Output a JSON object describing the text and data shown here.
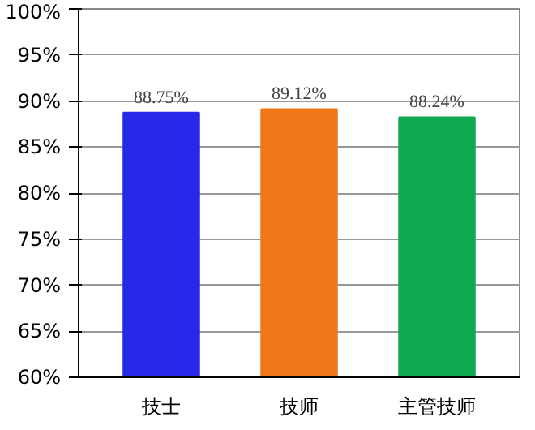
{
  "chart_data": {
    "type": "bar",
    "categories": [
      "技士",
      "技师",
      "主管技师"
    ],
    "values": [
      88.75,
      89.12,
      88.24
    ],
    "colors": [
      "#2828e8",
      "#f07818",
      "#10a850"
    ],
    "value_labels": [
      "88.75%",
      "89.12%",
      "88.24%"
    ],
    "ylim": [
      60,
      100
    ],
    "yticks": [
      {
        "value": 60,
        "label": "60%"
      },
      {
        "value": 65,
        "label": "65%"
      },
      {
        "value": 70,
        "label": "70%"
      },
      {
        "value": 75,
        "label": "75%"
      },
      {
        "value": 80,
        "label": "80%"
      },
      {
        "value": 85,
        "label": "85%"
      },
      {
        "value": 90,
        "label": "90%"
      },
      {
        "value": 95,
        "label": "95%"
      },
      {
        "value": 100,
        "label": "100%"
      }
    ],
    "grid": "y"
  }
}
